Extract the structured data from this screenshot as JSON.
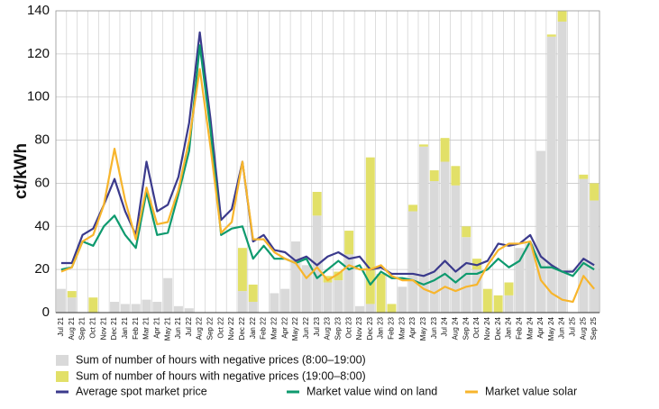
{
  "chart_data": {
    "type": "combo",
    "y_label": "ct/kWh",
    "categories": [
      "Jul 21",
      "Aug 21",
      "Sep 21",
      "Oct 21",
      "Nov 21",
      "Dec 21",
      "Jan 21",
      "Feb 21",
      "Mar 21",
      "Apr 21",
      "May 21",
      "Jun 21",
      "Jul 22",
      "Aug 22",
      "Sep 22",
      "Oct 22",
      "Nov 22",
      "Dec 22",
      "Jan 22",
      "Feb 22",
      "Mar 22",
      "Apr 22",
      "May 22",
      "Jun 22",
      "Jul 23",
      "Aug 23",
      "Sep 23",
      "Oct 23",
      "Nov 23",
      "Dec 23",
      "Jan 23",
      "Feb 23",
      "Mar 23",
      "Apr 23",
      "May 23",
      "Jun 23",
      "Jul 24",
      "Aug 24",
      "Sep 24",
      "Oct 24",
      "Nov 24",
      "Dec 24",
      "Jan 24",
      "Feb 24",
      "Mar 24",
      "Apr 24",
      "May 24",
      "Jun 24",
      "Jul 25",
      "Aug 25",
      "Sep 25"
    ],
    "series": [
      {
        "name": "Sum of number of hours with negative prices (8:00–19:00)",
        "type": "bar",
        "color": "#d9d9d9",
        "values": [
          11,
          7,
          0,
          0,
          0,
          5,
          4,
          4,
          6,
          5,
          16,
          3,
          2,
          0,
          0,
          0,
          0,
          10,
          5,
          0,
          9,
          11,
          33,
          22,
          45,
          14,
          15,
          27,
          3,
          4,
          0,
          0,
          12,
          47,
          77,
          61,
          70,
          59,
          35,
          20,
          0,
          0,
          8,
          30,
          32,
          75,
          128,
          135,
          0,
          62,
          52
        ]
      },
      {
        "name": "Sum of number of hours with negative prices (19:00–8:00)",
        "type": "bar",
        "color": "#e2e068",
        "values": [
          0,
          3,
          0,
          7,
          0,
          0,
          0,
          0,
          0,
          0,
          0,
          0,
          0,
          0,
          0,
          0,
          0,
          20,
          8,
          0,
          0,
          0,
          0,
          0,
          11,
          3,
          4,
          11,
          0,
          68,
          18,
          4,
          0,
          3,
          1,
          5,
          11,
          9,
          5,
          5,
          11,
          8,
          6,
          0,
          0,
          0,
          1,
          5,
          0,
          2,
          8
        ]
      },
      {
        "name": "Average spot market price",
        "type": "line",
        "color": "#3b3a8c",
        "values": [
          23,
          23,
          36,
          39,
          50,
          62,
          47,
          36,
          70,
          47,
          50,
          63,
          88,
          130,
          90,
          43,
          48,
          70,
          33,
          36,
          29,
          28,
          24,
          26,
          22,
          26,
          28,
          25,
          26,
          20,
          21,
          18,
          18,
          18,
          17,
          19,
          24,
          19,
          23,
          22,
          24,
          32,
          31,
          32,
          36,
          26,
          22,
          19,
          19,
          25,
          22
        ]
      },
      {
        "name": "Market value wind on land",
        "type": "line",
        "color": "#0e9a6e",
        "values": [
          20,
          21,
          33,
          31,
          40,
          45,
          36,
          30,
          56,
          36,
          37,
          55,
          75,
          124,
          85,
          36,
          39,
          40,
          25,
          31,
          25,
          25,
          23,
          25,
          16,
          20,
          24,
          20,
          22,
          13,
          19,
          16,
          16,
          15,
          13,
          15,
          18,
          14,
          18,
          18,
          20,
          25,
          21,
          24,
          33,
          21,
          21,
          19,
          17,
          23,
          20
        ]
      },
      {
        "name": "Market value solar",
        "type": "line",
        "color": "#f7b52c",
        "values": [
          19,
          21,
          33,
          36,
          50,
          76,
          52,
          34,
          58,
          41,
          42,
          57,
          80,
          113,
          77,
          37,
          42,
          70,
          34,
          34,
          28,
          25,
          23,
          16,
          21,
          15,
          18,
          22,
          20,
          20,
          22,
          17,
          15,
          15,
          11,
          9,
          12,
          10,
          12,
          13,
          22,
          29,
          32,
          32,
          33,
          15,
          9,
          6,
          5,
          17,
          11
        ]
      }
    ],
    "ylim": [
      0,
      140
    ],
    "yticks": [
      0,
      20,
      40,
      60,
      80,
      100,
      120,
      140
    ],
    "grid": true
  }
}
